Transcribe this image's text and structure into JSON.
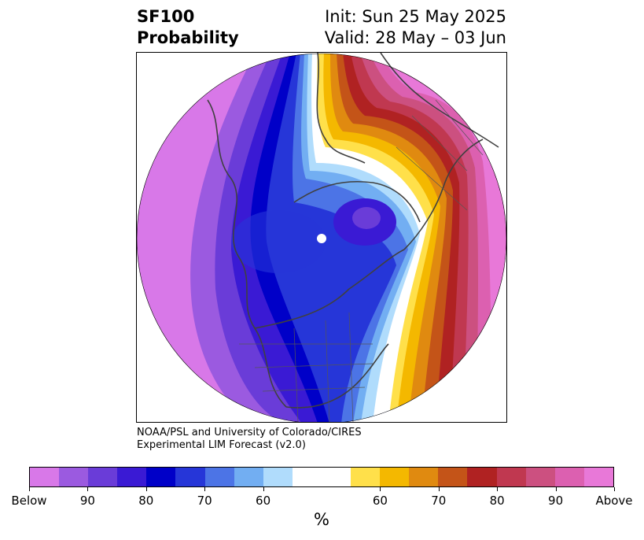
{
  "title": {
    "left_line1": "SF100",
    "left_line2": "Probability",
    "right_line1": "Init: Sun 25 May 2025",
    "right_line2": "Valid: 28 May – 03 Jun"
  },
  "credit": {
    "line1": "NOAA/PSL and University of Colorado/CIRES",
    "line2": "Experimental LIM Forecast (v2.0)"
  },
  "colorbar": {
    "unit_label": "%",
    "colors": [
      "#d878e8",
      "#9b5ae0",
      "#6a3cd8",
      "#3a1ad4",
      "#0000c8",
      "#2636d8",
      "#4c74e6",
      "#72aef2",
      "#b0dcfc",
      "#ffffff",
      "#ffffff",
      "#ffe04a",
      "#f4b800",
      "#e08a10",
      "#c45418",
      "#b02222",
      "#c03850",
      "#cc5080",
      "#dc60b0",
      "#e878d8"
    ],
    "tick_labels": [
      "Below",
      "90",
      "80",
      "70",
      "60",
      "60",
      "70",
      "80",
      "90",
      "Above"
    ]
  },
  "map": {
    "projection": "north-polar-stereographic",
    "field": "SF100 probability",
    "below_side": "western hemisphere (North America, North Pacific)",
    "above_side": "eastern hemisphere (Eurasia)"
  }
}
